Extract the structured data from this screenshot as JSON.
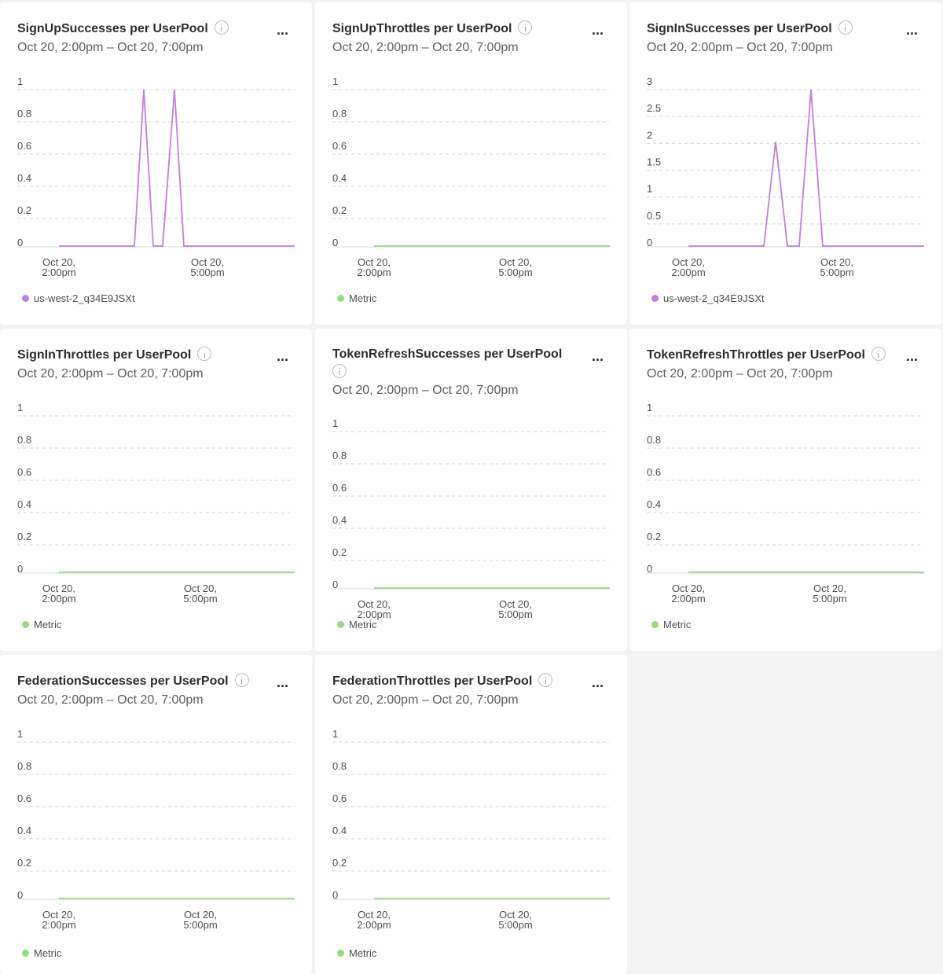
{
  "colors": {
    "purple": "#c17fde",
    "green": "#94dd7f",
    "grid": "#d6d8da"
  },
  "x_ticks": [
    {
      "line1": "Oct 20,",
      "line2": "2:00pm"
    },
    {
      "line1": "Oct 20,",
      "line2": "5:00pm"
    }
  ],
  "panels": [
    {
      "title": "SignUpSuccesses per UserPool",
      "subtitle": "Oct 20, 2:00pm – Oct 20, 7:00pm",
      "menu": "...",
      "legend": "us-west-2_q34E9JSXt",
      "chart_data": {
        "type": "line",
        "y_ticks": [
          "1",
          "0.8",
          "0.6",
          "0.4",
          "0.2",
          "0"
        ],
        "ylim": [
          0,
          1
        ],
        "series": [
          {
            "name": "us-west-2_q34E9JSXt",
            "color": "#c17fde",
            "x": [
              0,
              0.32,
              0.36,
              0.4,
              0.44,
              0.49,
              0.53,
              1
            ],
            "values": [
              0,
              0,
              1,
              0,
              0,
              1,
              0,
              0
            ]
          }
        ]
      }
    },
    {
      "title": "SignUpThrottles per UserPool",
      "subtitle": "Oct 20, 2:00pm – Oct 20, 7:00pm",
      "menu": "...",
      "legend": "Metric",
      "chart_data": {
        "type": "line",
        "y_ticks": [
          "1",
          "0.8",
          "0.6",
          "0.4",
          "0.2",
          "0"
        ],
        "ylim": [
          0,
          1
        ],
        "series": [
          {
            "color": "#94dd7f",
            "x": [
              0,
              1
            ],
            "values": [
              0,
              0
            ]
          }
        ]
      }
    },
    {
      "title": "SignInSuccesses per UserPool",
      "subtitle": "Oct 20, 2:00pm – Oct 20, 7:00pm",
      "menu": "...",
      "legend": "us-west-2_q34E9JSXt",
      "chart_data": {
        "type": "line",
        "y_ticks": [
          "3",
          "2.5",
          "2",
          "1.5",
          "1",
          "0.5",
          "0"
        ],
        "ylim": [
          0,
          3
        ],
        "series": [
          {
            "name": "us-west-2_q34E9JSXt",
            "color": "#c17fde",
            "x": [
              0,
              0.32,
              0.37,
              0.42,
              0.47,
              0.52,
              0.57,
              1
            ],
            "values": [
              0,
              0,
              2,
              0,
              0,
              3,
              0,
              0
            ]
          }
        ]
      }
    },
    {
      "title": "SignInThrottles per UserPool",
      "subtitle": "Oct 20, 2:00pm – Oct 20, 7:00pm",
      "menu": "...",
      "legend": "Metric",
      "chart_data": {
        "type": "line",
        "y_ticks": [
          "1",
          "0.8",
          "0.6",
          "0.4",
          "0.2",
          "0"
        ],
        "ylim": [
          0,
          1
        ],
        "series": [
          {
            "color": "#94dd7f",
            "x": [
              0,
              1
            ],
            "values": [
              0,
              0
            ]
          }
        ]
      }
    },
    {
      "title": "TokenRefreshSuccesses per UserPool",
      "subtitle": "Oct 20, 2:00pm – Oct 20, 7:00pm",
      "menu": "...",
      "legend": "Metric",
      "chart_data": {
        "type": "line",
        "y_ticks": [
          "1",
          "0.8",
          "0.6",
          "0.4",
          "0.2",
          "0"
        ],
        "ylim": [
          0,
          1
        ],
        "series": [
          {
            "color": "#94dd7f",
            "x": [
              0,
              1
            ],
            "values": [
              0,
              0
            ]
          }
        ]
      }
    },
    {
      "title": "TokenRefreshThrottles per UserPool",
      "subtitle": "Oct 20, 2:00pm – Oct 20, 7:00pm",
      "menu": "...",
      "legend": "Metric",
      "chart_data": {
        "type": "line",
        "y_ticks": [
          "1",
          "0.8",
          "0.6",
          "0.4",
          "0.2",
          "0"
        ],
        "ylim": [
          0,
          1
        ],
        "series": [
          {
            "color": "#94dd7f",
            "x": [
              0,
              1
            ],
            "values": [
              0,
              0
            ]
          }
        ]
      }
    },
    {
      "title": "FederationSuccesses per UserPool",
      "subtitle": "Oct 20, 2:00pm – Oct 20, 7:00pm",
      "menu": "...",
      "legend": "Metric",
      "chart_data": {
        "type": "line",
        "y_ticks": [
          "1",
          "0.8",
          "0.6",
          "0.4",
          "0.2",
          "0"
        ],
        "ylim": [
          0,
          1
        ],
        "series": [
          {
            "color": "#94dd7f",
            "x": [
              0,
              1
            ],
            "values": [
              0,
              0
            ]
          }
        ]
      }
    },
    {
      "title": "FederationThrottles per UserPool",
      "subtitle": "Oct 20, 2:00pm – Oct 20, 7:00pm",
      "menu": "...",
      "legend": "Metric",
      "chart_data": {
        "type": "line",
        "y_ticks": [
          "1",
          "0.8",
          "0.6",
          "0.4",
          "0.2",
          "0"
        ],
        "ylim": [
          0,
          1
        ],
        "series": [
          {
            "color": "#94dd7f",
            "x": [
              0,
              1
            ],
            "values": [
              0,
              0
            ]
          }
        ]
      }
    }
  ]
}
